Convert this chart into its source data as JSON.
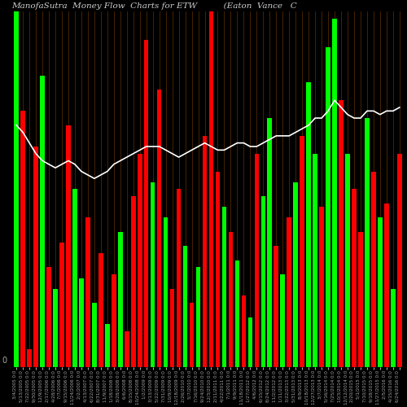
{
  "title": "ManofaSutra  Money Flow  Charts for ETW          (Eaton  Vance   C",
  "background_color": "#000000",
  "grid_color": "#8B4500",
  "line_color": "#ffffff",
  "ylabel": "0",
  "figsize": [
    5.0,
    5.0
  ],
  "dpi": 100,
  "n_bars": 60,
  "bar_heights": [
    100,
    72,
    5,
    62,
    82,
    28,
    22,
    35,
    68,
    50,
    25,
    42,
    18,
    32,
    12,
    26,
    38,
    10,
    48,
    60,
    92,
    52,
    78,
    42,
    22,
    50,
    34,
    18,
    28,
    65,
    100,
    55,
    45,
    38,
    30,
    20,
    14,
    60,
    48,
    70,
    34,
    26,
    42,
    52,
    65,
    80,
    60,
    45,
    90,
    98,
    75,
    60,
    50,
    38,
    70,
    55,
    42,
    46,
    22,
    60
  ],
  "bar_colors": [
    "#00ff00",
    "#ff0000",
    "#ff0000",
    "#ff0000",
    "#00ff00",
    "#ff0000",
    "#00ff00",
    "#ff0000",
    "#ff0000",
    "#00ff00",
    "#00ff00",
    "#ff0000",
    "#00ff00",
    "#ff0000",
    "#00ff00",
    "#ff0000",
    "#00ff00",
    "#ff0000",
    "#ff0000",
    "#ff0000",
    "#ff0000",
    "#00ff00",
    "#ff0000",
    "#00ff00",
    "#ff0000",
    "#ff0000",
    "#00ff00",
    "#ff0000",
    "#00ff00",
    "#ff0000",
    "#ff0000",
    "#ff0000",
    "#00ff00",
    "#ff0000",
    "#00ff00",
    "#ff0000",
    "#00ff00",
    "#ff0000",
    "#00ff00",
    "#00ff00",
    "#ff0000",
    "#00ff00",
    "#ff0000",
    "#00ff00",
    "#ff0000",
    "#00ff00",
    "#00ff00",
    "#ff0000",
    "#00ff00",
    "#00ff00",
    "#ff0000",
    "#00ff00",
    "#ff0000",
    "#ff0000",
    "#00ff00",
    "#ff0000",
    "#00ff00",
    "#ff0000",
    "#00ff00",
    "#ff0000"
  ],
  "line_y": [
    68,
    66,
    63,
    60,
    58,
    57,
    56,
    57,
    58,
    57,
    55,
    54,
    53,
    54,
    55,
    57,
    58,
    59,
    60,
    61,
    62,
    62,
    62,
    61,
    60,
    59,
    60,
    61,
    62,
    63,
    62,
    61,
    61,
    62,
    63,
    63,
    62,
    62,
    63,
    64,
    65,
    65,
    65,
    66,
    67,
    68,
    70,
    70,
    72,
    75,
    73,
    71,
    70,
    70,
    72,
    72,
    71,
    72,
    72,
    73
  ],
  "x_labels": [
    "3/4/2005 0:0",
    "5/13/2005 0:0",
    "7/22/2005 0:0",
    "9/30/2005 0:0",
    "12/9/2005 0:0",
    "2/17/2006 0:0",
    "4/28/2006 0:0",
    "7/7/2006 0:0",
    "9/15/2006 0:0",
    "11/24/2006 0:0",
    "2/2/2007 0:0",
    "4/13/2007 0:0",
    "6/22/2007 0:0",
    "8/31/2007 0:0",
    "11/9/2007 0:0",
    "1/18/2008 0:0",
    "3/28/2008 0:0",
    "6/6/2008 0:0",
    "8/15/2008 0:0",
    "10/24/2008 0:0",
    "1/2/2009 0:0",
    "3/13/2009 0:0",
    "5/22/2009 0:0",
    "7/31/2009 0:0",
    "10/9/2009 0:0",
    "12/18/2009 0:0",
    "2/26/2010 0:0",
    "5/7/2010 0:0",
    "7/16/2010 0:0",
    "9/24/2010 0:0",
    "12/3/2010 0:0",
    "2/11/2011 0:0",
    "4/22/2011 0:0",
    "7/1/2011 0:0",
    "9/9/2011 0:0",
    "11/18/2011 0:0",
    "1/27/2012 0:0",
    "4/6/2012 0:0",
    "6/15/2012 0:0",
    "8/24/2012 0:0",
    "11/2/2012 0:0",
    "1/11/2013 0:0",
    "3/22/2013 0:0",
    "5/31/2013 0:0",
    "8/9/2013 0:0",
    "10/18/2013 0:0",
    "12/27/2013 0:0",
    "3/7/2014 0:0",
    "5/16/2014 0:0",
    "7/25/2014 0:0",
    "10/3/2014 0:0",
    "12/12/2014 0:0",
    "2/20/2015 0:0",
    "5/1/2015 0:0",
    "7/10/2015 0:0",
    "9/18/2015 0:0",
    "11/27/2015 0:0",
    "2/5/2016 0:0",
    "4/15/2016 0:0",
    "6/24/2016 0:0"
  ],
  "title_fontsize": 7.5,
  "title_color": "#cccccc",
  "xlabel_fontsize": 4.0,
  "ylabel_fontsize": 7,
  "ylim": [
    0,
    100
  ]
}
